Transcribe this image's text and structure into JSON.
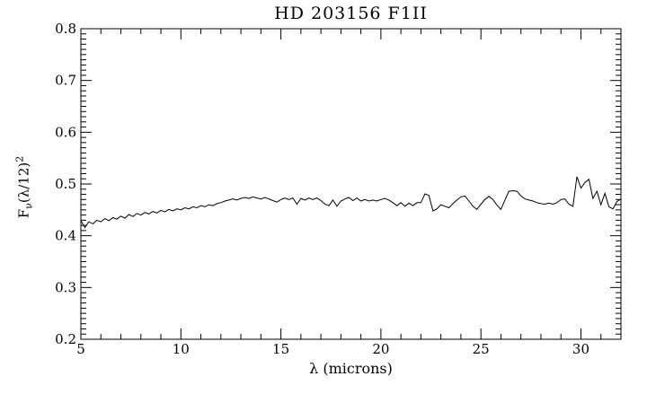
{
  "chart_data": {
    "type": "line",
    "title": "HD 203156 F1II",
    "xlabel": "λ (microns)",
    "ylabel": "Fν(λ/12)²",
    "ylabel_parts": {
      "base": "F",
      "subscript": "ν",
      "middle": "(λ/12)",
      "superscript": "2"
    },
    "xlim": [
      5,
      32
    ],
    "ylim": [
      0.2,
      0.8
    ],
    "x_major_ticks": [
      5,
      10,
      15,
      20,
      25,
      30
    ],
    "x_tick_labels": [
      "5",
      "10",
      "15",
      "20",
      "25",
      "30"
    ],
    "x_minor_step": 1,
    "y_major_ticks": [
      0.2,
      0.3,
      0.4,
      0.5,
      0.6,
      0.7,
      0.8
    ],
    "y_tick_labels": [
      "0.2",
      "0.3",
      "0.4",
      "0.5",
      "0.6",
      "0.7",
      "0.8"
    ],
    "y_minor_step": 0.01,
    "grid": false,
    "legend": null,
    "background": "#ffffff",
    "axis_color": "#000000",
    "line_color": "#000000",
    "series": [
      {
        "name": "spectrum",
        "x_start": 5.0,
        "x_step": 0.2,
        "y": [
          0.429,
          0.416,
          0.427,
          0.423,
          0.43,
          0.427,
          0.433,
          0.429,
          0.435,
          0.432,
          0.438,
          0.434,
          0.441,
          0.437,
          0.443,
          0.44,
          0.445,
          0.442,
          0.447,
          0.444,
          0.449,
          0.446,
          0.451,
          0.448,
          0.452,
          0.45,
          0.454,
          0.452,
          0.456,
          0.454,
          0.458,
          0.456,
          0.46,
          0.458,
          0.462,
          0.464,
          0.467,
          0.469,
          0.471,
          0.469,
          0.472,
          0.474,
          0.472,
          0.475,
          0.473,
          0.471,
          0.474,
          0.471,
          0.468,
          0.465,
          0.47,
          0.473,
          0.47,
          0.473,
          0.461,
          0.472,
          0.469,
          0.473,
          0.47,
          0.473,
          0.468,
          0.461,
          0.458,
          0.469,
          0.457,
          0.467,
          0.471,
          0.474,
          0.468,
          0.473,
          0.467,
          0.47,
          0.467,
          0.469,
          0.467,
          0.47,
          0.472,
          0.469,
          0.464,
          0.458,
          0.464,
          0.457,
          0.463,
          0.458,
          0.464,
          0.464,
          0.481,
          0.478,
          0.448,
          0.452,
          0.46,
          0.457,
          0.454,
          0.462,
          0.469,
          0.475,
          0.477,
          0.467,
          0.457,
          0.451,
          0.461,
          0.47,
          0.476,
          0.47,
          0.459,
          0.451,
          0.469,
          0.486,
          0.487,
          0.486,
          0.477,
          0.471,
          0.469,
          0.467,
          0.464,
          0.462,
          0.461,
          0.463,
          0.461,
          0.464,
          0.47,
          0.471,
          0.461,
          0.457,
          0.514,
          0.492,
          0.503,
          0.509,
          0.472,
          0.486,
          0.46,
          0.482,
          0.456,
          0.452,
          0.466,
          0.471
        ]
      }
    ]
  }
}
